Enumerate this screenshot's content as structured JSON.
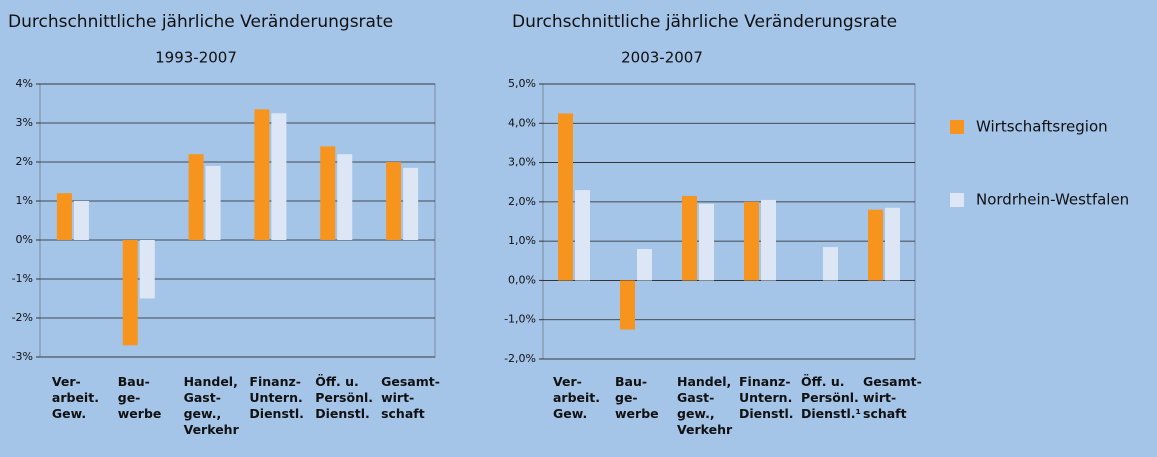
{
  "chart_data": [
    {
      "type": "bar",
      "title": "Durchschnittliche jährliche Veränderungsrate",
      "subtitle": "1993-2007",
      "categories": [
        [
          "Ver-",
          "arbeit.",
          "Gew."
        ],
        [
          "Bau-",
          "ge-",
          "werbe"
        ],
        [
          "Handel,",
          "Gast-",
          "gew.,",
          "Verkehr"
        ],
        [
          "Finanz-",
          "Untern.",
          "Dienstl."
        ],
        [
          "Öff. u.",
          "Persönl.",
          "Dienstl."
        ],
        [
          "Gesamt-",
          "wirt-",
          "schaft"
        ]
      ],
      "series": [
        {
          "color": "#f7941d",
          "values": [
            1.2,
            -2.7,
            2.2,
            3.35,
            2.4,
            2.0
          ]
        },
        {
          "color": "#dce6f4",
          "values": [
            1.0,
            -1.5,
            1.9,
            3.25,
            2.2,
            1.85
          ]
        }
      ],
      "ylim": [
        -3,
        4
      ],
      "yticks": [
        {
          "value": -3,
          "label": "-3%"
        },
        {
          "value": -2,
          "label": "-2%"
        },
        {
          "value": -1,
          "label": "-1%"
        },
        {
          "value": 0,
          "label": "0%"
        },
        {
          "value": 1,
          "label": "1%"
        },
        {
          "value": 2,
          "label": "2%"
        },
        {
          "value": 3,
          "label": "3%"
        },
        {
          "value": 4,
          "label": "4%"
        }
      ],
      "grid": true
    },
    {
      "type": "bar",
      "title": "Durchschnittliche jährliche Veränderungsrate",
      "subtitle": "2003-2007",
      "categories": [
        [
          "Ver-",
          "arbeit.",
          "Gew."
        ],
        [
          "Bau-",
          "ge-",
          "werbe"
        ],
        [
          "Handel,",
          "Gast-",
          "gew.,",
          "Verkehr"
        ],
        [
          "Finanz-",
          "Untern.",
          "Dienstl."
        ],
        [
          "Öff. u.",
          "Persönl.",
          "Dienstl.¹"
        ],
        [
          "Gesamt-",
          "wirt-",
          "schaft"
        ]
      ],
      "series": [
        {
          "name": "Wirtschaftsregion",
          "color": "#f7941d",
          "values": [
            4.25,
            -1.25,
            2.15,
            2.0,
            null,
            1.8
          ]
        },
        {
          "name": "Nordrhein-Westfalen",
          "color": "#dce6f4",
          "values": [
            2.3,
            0.8,
            1.95,
            2.05,
            0.85,
            1.85
          ]
        }
      ],
      "ylim": [
        -2,
        5
      ],
      "yticks": [
        {
          "value": -2,
          "label": "-2,0%"
        },
        {
          "value": -1,
          "label": "-1,0%"
        },
        {
          "value": 0,
          "label": "0,0%"
        },
        {
          "value": 1,
          "label": "1,0%"
        },
        {
          "value": 2,
          "label": "2,0%"
        },
        {
          "value": 3,
          "label": "3,0%"
        },
        {
          "value": 4,
          "label": "4,0%"
        },
        {
          "value": 5,
          "label": "5,0%"
        }
      ],
      "grid": true,
      "legend": "right"
    }
  ]
}
